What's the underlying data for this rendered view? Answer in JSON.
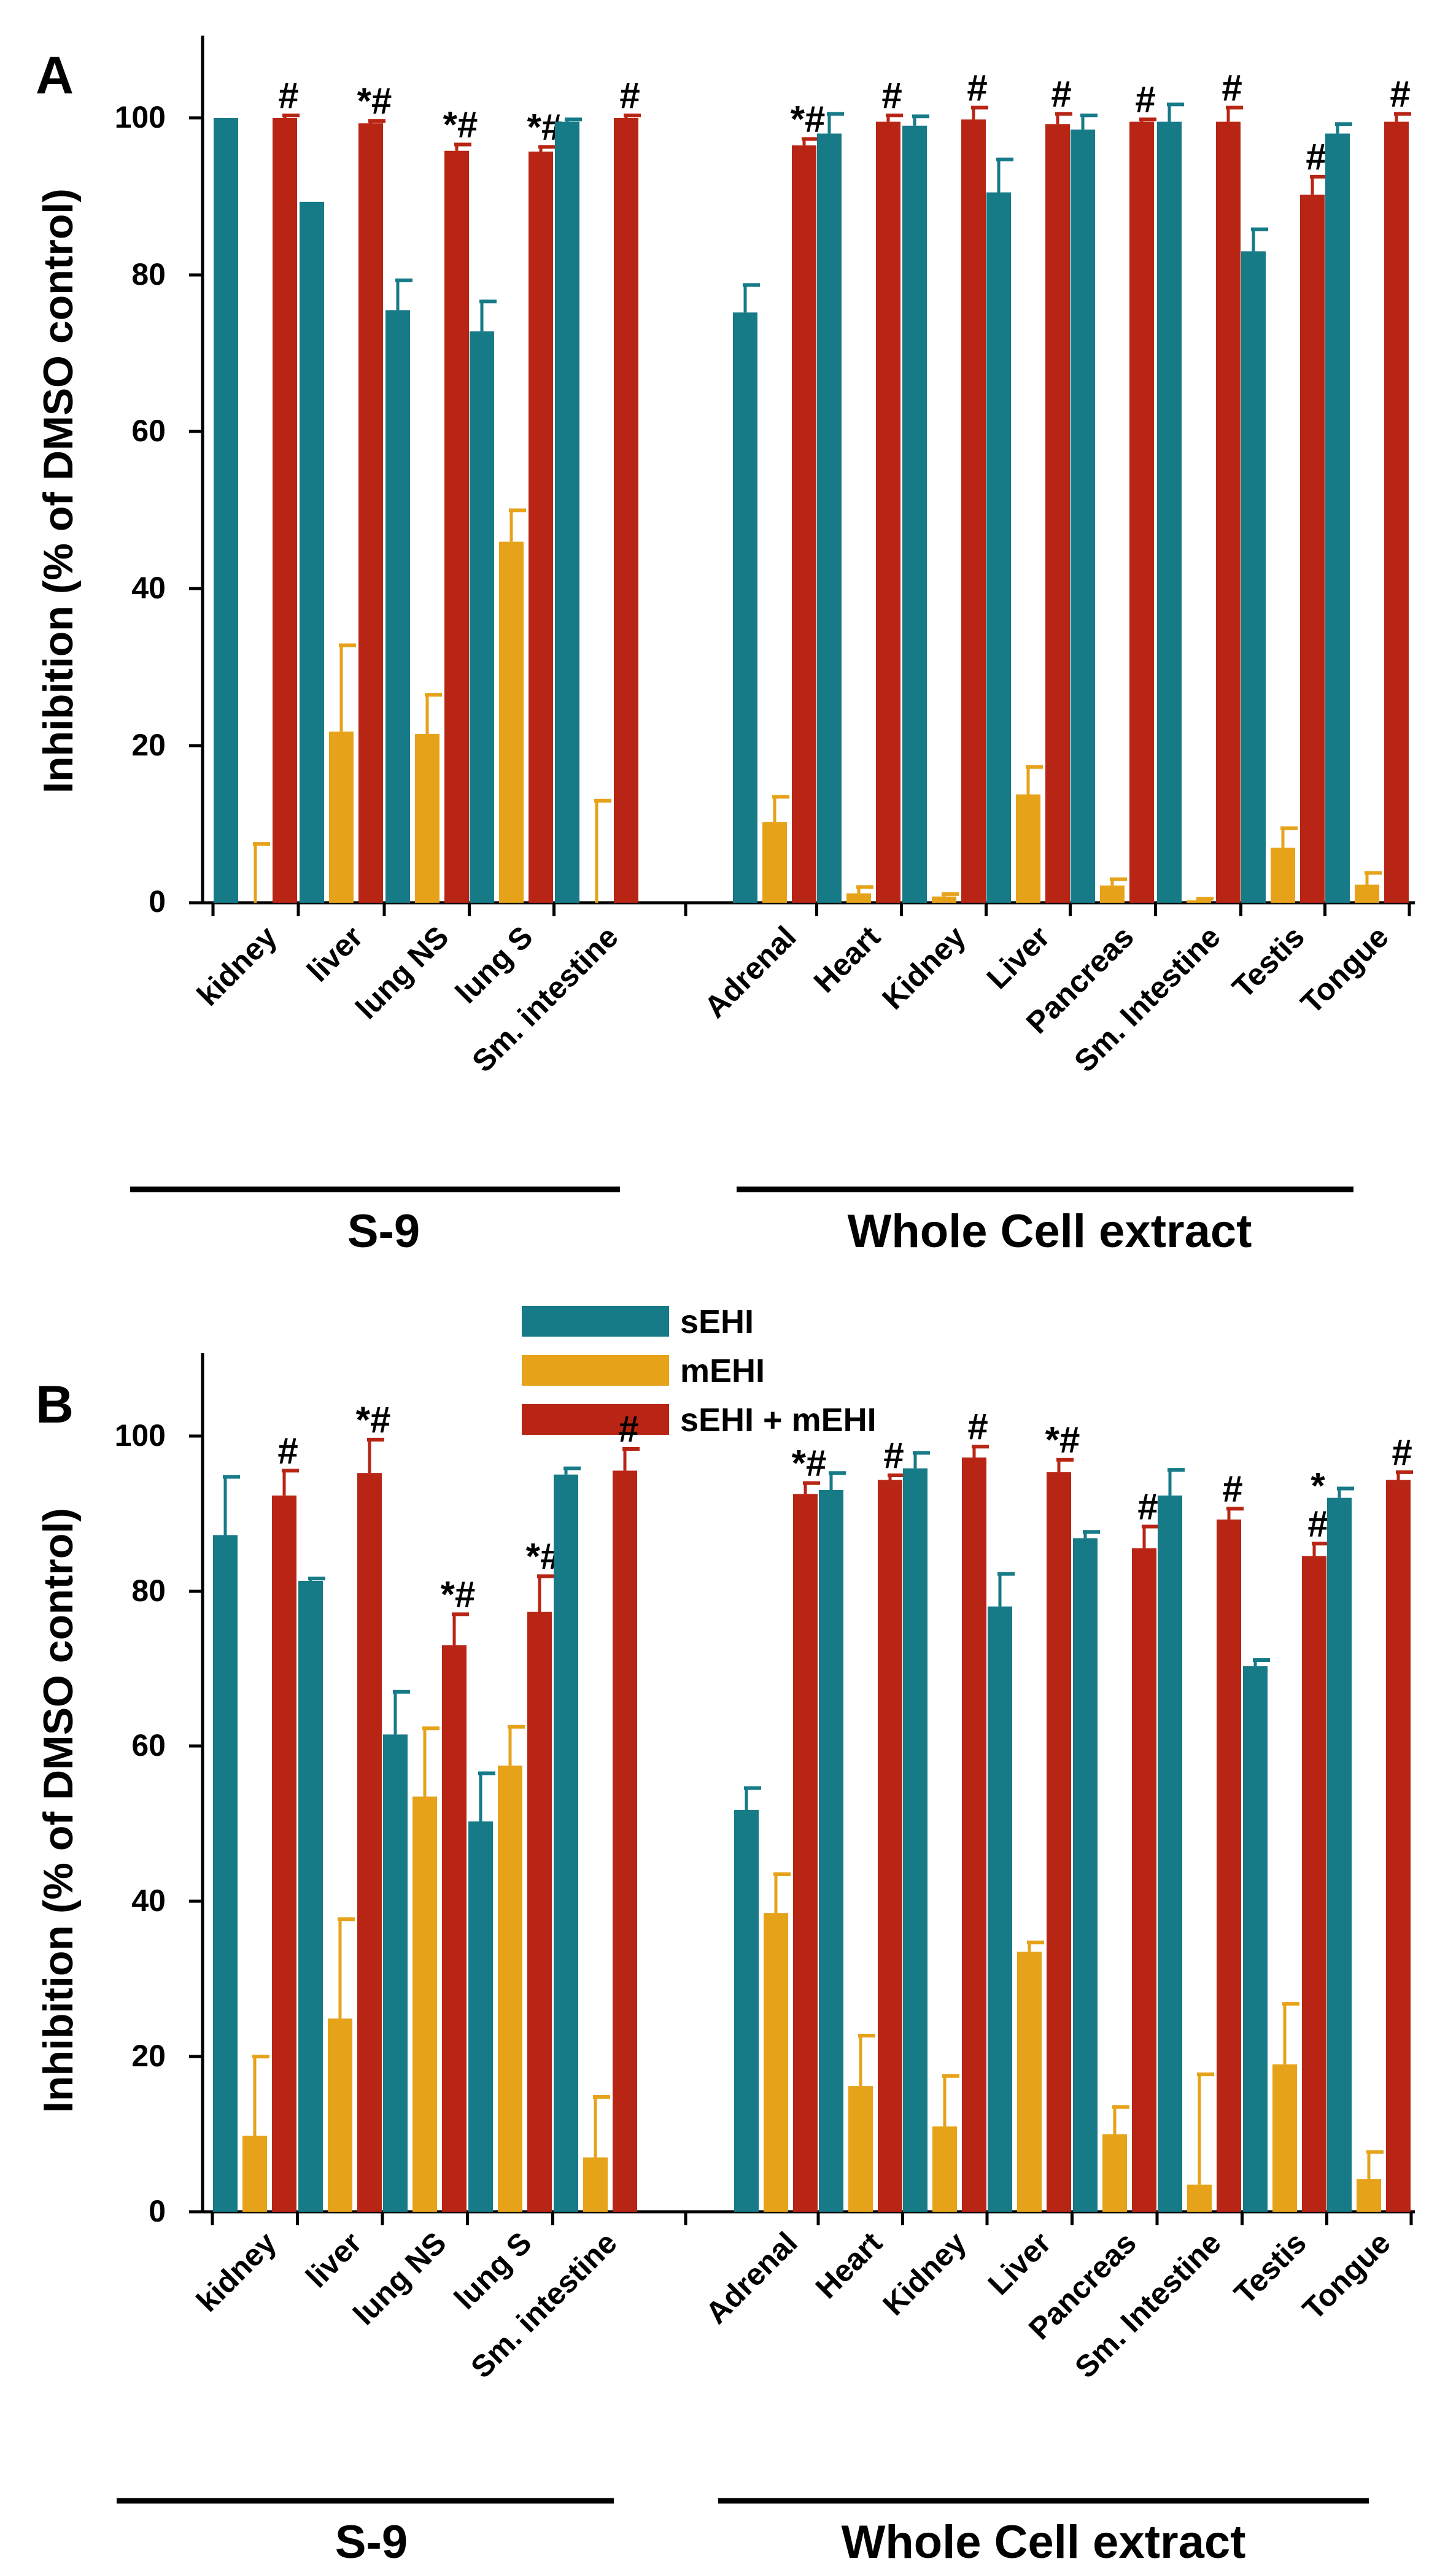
{
  "colors": {
    "sehi": "#167a87",
    "mehi": "#e6a31a",
    "both": "#b82514",
    "axis": "#000000"
  },
  "legend": {
    "sehi": "sEHI",
    "mehi": "mEHI",
    "both": "sEHI + mEHI"
  },
  "chart_data": [
    {
      "type": "bar",
      "panel_label": "A",
      "ylabel": "Inhibition (% of DMSO control)",
      "ylim": [
        0,
        110
      ],
      "yticks": [
        "0",
        "20",
        "40",
        "60",
        "80",
        "100"
      ],
      "categories": [
        "kidney",
        "liver",
        "lung NS",
        "lung S",
        "Sm. intestine",
        "Adrenal",
        "Heart",
        "Kidney",
        "Liver",
        "Pancreas",
        "Sm. Intestine",
        "Testis",
        "Tongue"
      ],
      "groups": [
        {
          "label": "S-9",
          "range": [
            0,
            4
          ]
        },
        {
          "label": "Whole Cell extract",
          "range": [
            5,
            12
          ]
        }
      ],
      "series": [
        {
          "name": "sEHI",
          "values": [
            100,
            89.3,
            75.5,
            72.8,
            99.5,
            75.2,
            98,
            99,
            90.5,
            98.5,
            99.5,
            83,
            98
          ],
          "errors": [
            0,
            0,
            3.8,
            3.8,
            0.3,
            3.5,
            2.5,
            1.2,
            4.2,
            1.8,
            2.2,
            2.8,
            1.2
          ]
        },
        {
          "name": "mEHI",
          "values": [
            0,
            21.8,
            21.5,
            46,
            0,
            10.3,
            1.2,
            0.8,
            13.8,
            2.2,
            0.3,
            7,
            2.3
          ],
          "errors": [
            7.5,
            11,
            5,
            4,
            13,
            3.2,
            0.8,
            0.3,
            3.5,
            0.8,
            0.2,
            2.5,
            1.5
          ]
        },
        {
          "name": "sEHI + mEHI",
          "values": [
            100,
            99.3,
            95.8,
            95.7,
            100,
            96.5,
            99.5,
            99.8,
            99.2,
            99.5,
            99.5,
            90.2,
            99.5
          ],
          "errors": [
            0.3,
            0.3,
            0.8,
            0.6,
            0.3,
            0.8,
            0.8,
            1.5,
            1.3,
            0.3,
            1.8,
            2.3,
            1
          ]
        }
      ],
      "annotations": [
        "#",
        "*#",
        "*#",
        "*#",
        "#",
        "*#",
        "#",
        "#",
        "#",
        "#",
        "#",
        "#",
        "#"
      ]
    },
    {
      "type": "bar",
      "panel_label": "B",
      "ylabel": "Inhibition (% of DMSO control)",
      "ylim": [
        0,
        110
      ],
      "yticks": [
        "0",
        "20",
        "40",
        "60",
        "80",
        "100"
      ],
      "categories": [
        "kidney",
        "liver",
        "lung NS",
        "lung S",
        "Sm. intestine",
        "Adrenal",
        "Heart",
        "Kidney",
        "Liver",
        "Pancreas",
        "Sm. Intestine",
        "Testis",
        "Tongue"
      ],
      "groups": [
        {
          "label": "S-9",
          "range": [
            0,
            4
          ]
        },
        {
          "label": "Whole Cell extract",
          "range": [
            5,
            12
          ]
        }
      ],
      "series": [
        {
          "name": "sEHI",
          "values": [
            87.2,
            81.3,
            61.5,
            50.3,
            95,
            51.8,
            93,
            95.8,
            78,
            86.8,
            92.3,
            70.3,
            92
          ],
          "errors": [
            7.5,
            0.3,
            5.5,
            6.2,
            0.8,
            2.8,
            2.2,
            2,
            4.2,
            0.8,
            3.3,
            0.8,
            1.2
          ]
        },
        {
          "name": "mEHI",
          "values": [
            9.8,
            24.9,
            53.5,
            57.5,
            7,
            38.5,
            16.2,
            11,
            33.5,
            10,
            3.5,
            19,
            4.2
          ],
          "errors": [
            10.2,
            12.8,
            8.8,
            5,
            7.8,
            5,
            6.5,
            6.5,
            1.2,
            3.5,
            14.2,
            7.8,
            3.5
          ]
        },
        {
          "name": "sEHI + mEHI",
          "values": [
            92.3,
            95.2,
            73,
            77.3,
            95.5,
            92.5,
            94.3,
            97.2,
            95.3,
            85.5,
            89.2,
            84.5,
            94.3
          ],
          "errors": [
            3.2,
            4.3,
            4,
            4.6,
            2.8,
            1.4,
            0.6,
            1.4,
            1.6,
            2.8,
            1.4,
            1.6,
            1
          ]
        }
      ],
      "annotations": [
        "#",
        "*#",
        "*#",
        "*#",
        "#",
        "*#",
        "#",
        "#",
        "*#",
        "#",
        "#",
        "*\n#",
        "#"
      ]
    }
  ]
}
